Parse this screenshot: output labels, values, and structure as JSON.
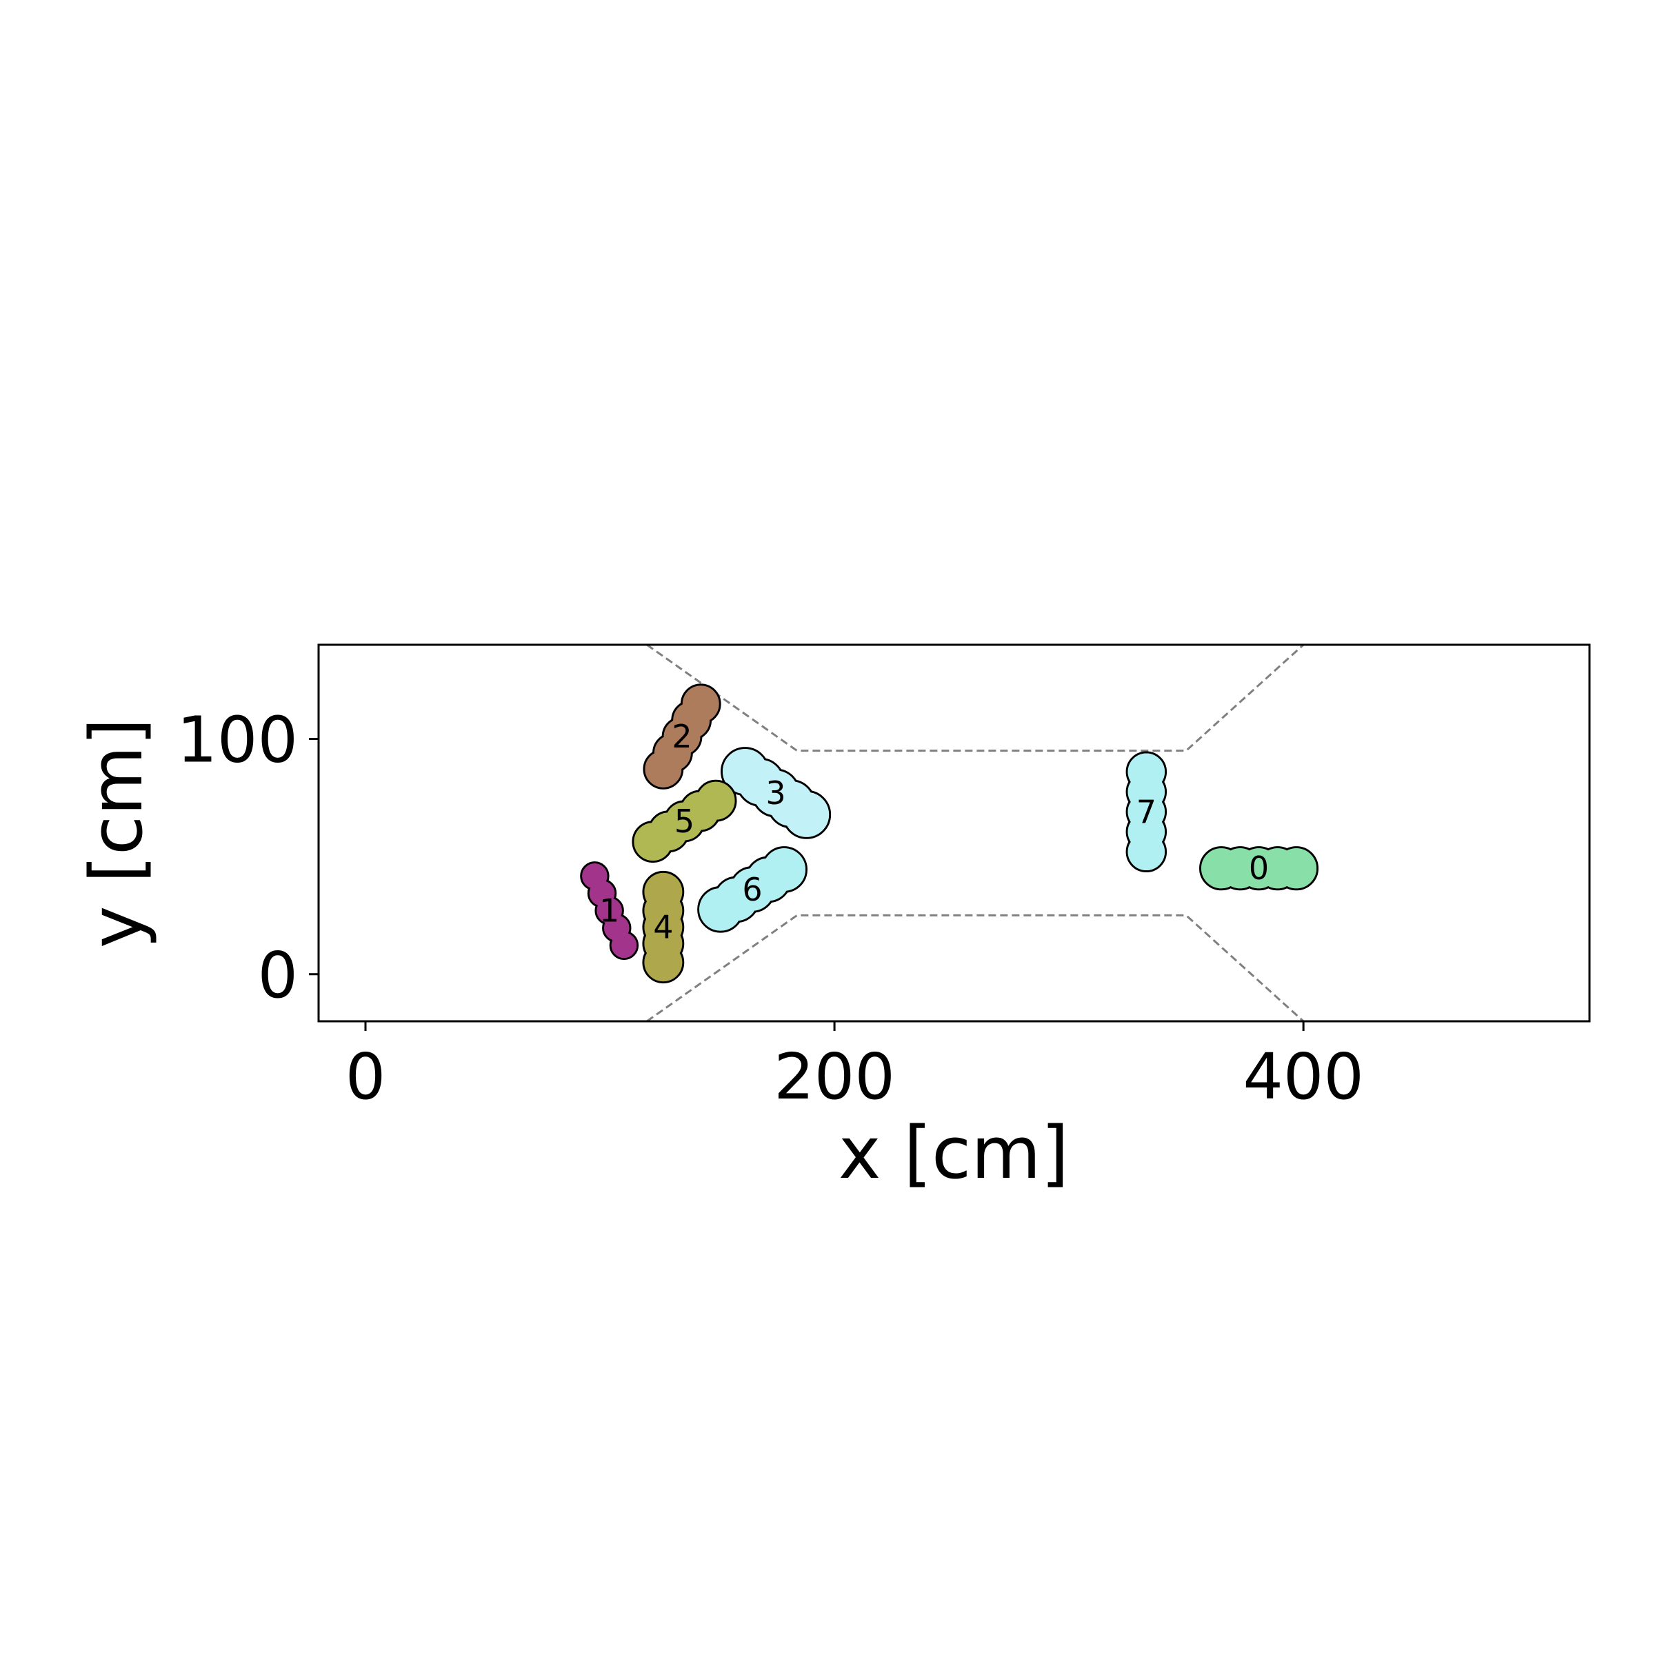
{
  "chart_data": {
    "type": "scatter",
    "title": "",
    "xlabel": "x [cm]",
    "ylabel": "y [cm]",
    "xlim": [
      -20,
      522
    ],
    "ylim": [
      -20,
      140
    ],
    "xticks": [
      {
        "value": 0,
        "label": "0"
      },
      {
        "value": 200,
        "label": "200"
      },
      {
        "value": 400,
        "label": "400"
      }
    ],
    "yticks": [
      {
        "value": 0,
        "label": "0"
      },
      {
        "value": 100,
        "label": "100"
      }
    ],
    "grid": false,
    "corridor": {
      "style": "dashed",
      "color": "#808080",
      "top": [
        [
          120,
          140
        ],
        [
          184,
          95
        ],
        [
          350,
          95
        ],
        [
          400,
          140
        ]
      ],
      "bottom": [
        [
          120,
          -20
        ],
        [
          184,
          25
        ],
        [
          350,
          25
        ],
        [
          400,
          -20
        ]
      ]
    },
    "agents": [
      {
        "label": "0",
        "color": "#88dfa8",
        "x": 381,
        "y": 45,
        "angle": 0,
        "radius": 9,
        "blobs": [
          -16,
          -8,
          0,
          8,
          16
        ]
      },
      {
        "label": "1",
        "color": "#a3348c",
        "x": 104,
        "y": 27,
        "angle": -67,
        "radius": 5.8,
        "blobs": [
          -16,
          -8,
          0,
          8,
          16
        ]
      },
      {
        "label": "2",
        "color": "#ad7c5c",
        "x": 135,
        "y": 101,
        "angle": 60,
        "radius": 8.2,
        "blobs": [
          -16,
          -8,
          0,
          8,
          16
        ]
      },
      {
        "label": "3",
        "color": "#c2f2f8",
        "x": 175,
        "y": 77,
        "angle": -35,
        "radius": 10,
        "blobs": [
          -16,
          -8,
          0,
          8,
          16
        ]
      },
      {
        "label": "4",
        "color": "#afa74c",
        "x": 127,
        "y": 20,
        "angle": 90,
        "radius": 8.5,
        "blobs": [
          -15,
          -7,
          0,
          7,
          15
        ]
      },
      {
        "label": "5",
        "color": "#afb852",
        "x": 136,
        "y": 65,
        "angle": 33,
        "radius": 8.5,
        "blobs": [
          -16,
          -8,
          0,
          8,
          16
        ]
      },
      {
        "label": "6",
        "color": "#b0f0f3",
        "x": 165,
        "y": 36,
        "angle": 32,
        "radius": 9.5,
        "blobs": [
          -16,
          -8,
          0,
          8,
          16
        ]
      },
      {
        "label": "7",
        "color": "#b0f0f3",
        "x": 333,
        "y": 69,
        "angle": 90,
        "radius": 8.3,
        "blobs": [
          -17,
          -8.5,
          0,
          8.5,
          17
        ]
      }
    ]
  }
}
